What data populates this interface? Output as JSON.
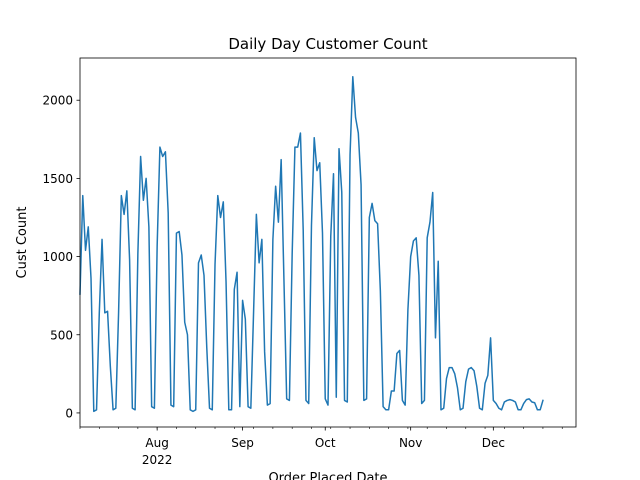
{
  "chart_data": {
    "type": "line",
    "title": "Daily Day Customer Count",
    "xlabel": "Order Placed Date",
    "ylabel": "Cust Count",
    "line_color": "#1f77b4",
    "grid": false,
    "legend": false,
    "x_range": [
      "2022-07-04",
      "2022-12-31"
    ],
    "ylim": [
      -90,
      2270
    ],
    "y_ticks": [
      0,
      500,
      1000,
      1500,
      2000
    ],
    "x_major_ticks": [
      {
        "date": "2022-08-01",
        "label": "Aug",
        "sublabel": "2022"
      },
      {
        "date": "2022-09-01",
        "label": "Sep",
        "sublabel": ""
      },
      {
        "date": "2022-10-01",
        "label": "Oct",
        "sublabel": ""
      },
      {
        "date": "2022-11-01",
        "label": "Nov",
        "sublabel": ""
      },
      {
        "date": "2022-12-01",
        "label": "Dec",
        "sublabel": ""
      }
    ],
    "x_minor_tick_step_days": 7,
    "start_date": "2022-07-04",
    "series": [
      {
        "values": [
          760,
          1390,
          1040,
          1190,
          860,
          10,
          20,
          640,
          1110,
          640,
          650,
          300,
          20,
          30,
          640,
          1390,
          1270,
          1420,
          980,
          30,
          20,
          1020,
          1640,
          1360,
          1500,
          1190,
          40,
          30,
          1070,
          1700,
          1640,
          1670,
          1280,
          50,
          40,
          1150,
          1160,
          1010,
          580,
          500,
          20,
          10,
          20,
          960,
          1010,
          880,
          420,
          30,
          20,
          950,
          1390,
          1250,
          1350,
          840,
          20,
          20,
          790,
          900,
          40,
          720,
          600,
          40,
          30,
          650,
          1270,
          960,
          1110,
          390,
          50,
          60,
          1110,
          1450,
          1220,
          1620,
          860,
          90,
          80,
          1020,
          1700,
          1700,
          1790,
          1170,
          80,
          60,
          1200,
          1760,
          1550,
          1600,
          1150,
          90,
          50,
          1130,
          1530,
          100,
          1690,
          1410,
          80,
          70,
          1650,
          2150,
          1890,
          1790,
          1460,
          80,
          90,
          1250,
          1340,
          1230,
          1210,
          780,
          40,
          20,
          20,
          140,
          140,
          380,
          400,
          80,
          50,
          660,
          1000,
          1100,
          1120,
          880,
          60,
          80,
          1120,
          1220,
          1410,
          480,
          970,
          20,
          30,
          220,
          290,
          290,
          250,
          160,
          20,
          30,
          200,
          280,
          290,
          270,
          170,
          30,
          20,
          190,
          240,
          480,
          80,
          60,
          30,
          20,
          70,
          80,
          85,
          80,
          70,
          20,
          20,
          60,
          85,
          90,
          70,
          65,
          20,
          20,
          80
        ]
      }
    ]
  }
}
